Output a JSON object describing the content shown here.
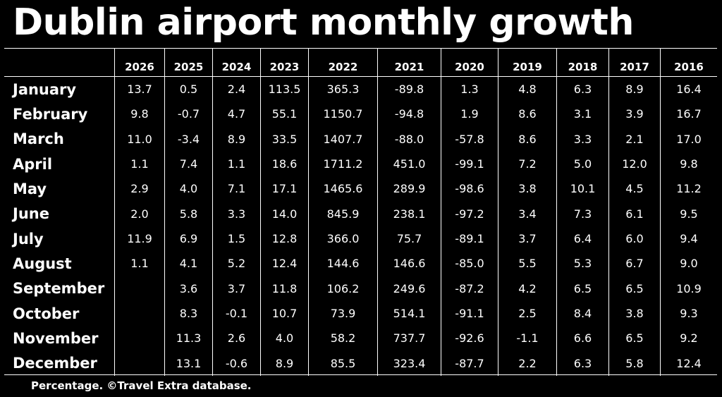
{
  "title": "Dublin airport monthly growth",
  "footnote": "Percentage. ©Travel Extra database.",
  "chart_data": {
    "type": "table",
    "title": "Dublin airport monthly growth",
    "unit": "Percentage",
    "columns": [
      "2026",
      "2025",
      "2024",
      "2023",
      "2022",
      "2021",
      "2020",
      "2019",
      "2018",
      "2017",
      "2016"
    ],
    "rows": [
      {
        "label": "January",
        "values": [
          "13.7",
          "0.5",
          "2.4",
          "113.5",
          "365.3",
          "-89.8",
          "1.3",
          "4.8",
          "6.3",
          "8.9",
          "16.4"
        ]
      },
      {
        "label": "February",
        "values": [
          "9.8",
          "-0.7",
          "4.7",
          "55.1",
          "1150.7",
          "-94.8",
          "1.9",
          "8.6",
          "3.1",
          "3.9",
          "16.7"
        ]
      },
      {
        "label": "March",
        "values": [
          "11.0",
          "-3.4",
          "8.9",
          "33.5",
          "1407.7",
          "-88.0",
          "-57.8",
          "8.6",
          "3.3",
          "2.1",
          "17.0"
        ]
      },
      {
        "label": "April",
        "values": [
          "1.1",
          "7.4",
          "1.1",
          "18.6",
          "1711.2",
          "451.0",
          "-99.1",
          "7.2",
          "5.0",
          "12.0",
          "9.8"
        ]
      },
      {
        "label": "May",
        "values": [
          "2.9",
          "4.0",
          "7.1",
          "17.1",
          "1465.6",
          "289.9",
          "-98.6",
          "3.8",
          "10.1",
          "4.5",
          "11.2"
        ]
      },
      {
        "label": "June",
        "values": [
          "2.0",
          "5.8",
          "3.3",
          "14.0",
          "845.9",
          "238.1",
          "-97.2",
          "3.4",
          "7.3",
          "6.1",
          "9.5"
        ]
      },
      {
        "label": "July",
        "values": [
          "11.9",
          "6.9",
          "1.5",
          "12.8",
          "366.0",
          "75.7",
          "-89.1",
          "3.7",
          "6.4",
          "6.0",
          "9.4"
        ]
      },
      {
        "label": "August",
        "values": [
          "1.1",
          "4.1",
          "5.2",
          "12.4",
          "144.6",
          "146.6",
          "-85.0",
          "5.5",
          "5.3",
          "6.7",
          "9.0"
        ]
      },
      {
        "label": "September",
        "values": [
          "",
          "3.6",
          "3.7",
          "11.8",
          "106.2",
          "249.6",
          "-87.2",
          "4.2",
          "6.5",
          "6.5",
          "10.9"
        ]
      },
      {
        "label": "October",
        "values": [
          "",
          "8.3",
          "-0.1",
          "10.7",
          "73.9",
          "514.1",
          "-91.1",
          "2.5",
          "8.4",
          "3.8",
          "9.3"
        ]
      },
      {
        "label": "November",
        "values": [
          "",
          "11.3",
          "2.6",
          "4.0",
          "58.2",
          "737.7",
          "-92.6",
          "-1.1",
          "6.6",
          "6.5",
          "9.2"
        ]
      },
      {
        "label": "December",
        "values": [
          "",
          "13.1",
          "-0.6",
          "8.9",
          "85.5",
          "323.4",
          "-87.7",
          "2.2",
          "6.3",
          "5.8",
          "12.4"
        ]
      }
    ]
  }
}
